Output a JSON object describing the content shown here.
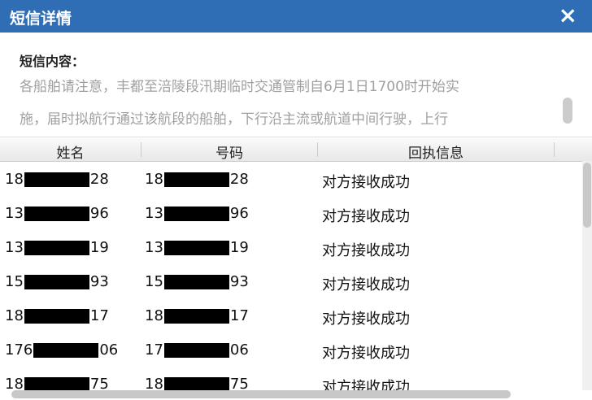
{
  "header": {
    "title": "短信详情",
    "close": "×"
  },
  "message": {
    "label": "短信内容：",
    "lines": [
      "各船舶请注意，丰都至涪陵段汛期临时交通管制自6月1日1700时开始实",
      "施，届时拟航行通过该航段的船舶，下行沿主流或航道中间行驶，上行"
    ]
  },
  "table": {
    "columns": [
      "姓名",
      "号码",
      "回执信息"
    ],
    "rows": [
      {
        "name_prefix": "18",
        "name_suffix": "28",
        "phone_prefix": "18",
        "phone_suffix": "28",
        "status": "对方接收成功"
      },
      {
        "name_prefix": "13",
        "name_suffix": "96",
        "phone_prefix": "13",
        "phone_suffix": "96",
        "status": "对方接收成功"
      },
      {
        "name_prefix": "13",
        "name_suffix": "19",
        "phone_prefix": "13",
        "phone_suffix": "19",
        "status": "对方接收成功"
      },
      {
        "name_prefix": "15",
        "name_suffix": "93",
        "phone_prefix": "15",
        "phone_suffix": "93",
        "status": "对方接收成功"
      },
      {
        "name_prefix": "18",
        "name_suffix": "17",
        "phone_prefix": "18",
        "phone_suffix": "17",
        "status": "对方接收成功"
      },
      {
        "name_prefix": "176",
        "name_suffix": "06",
        "phone_prefix": "17",
        "phone_suffix": "06",
        "status": "对方接收成功"
      },
      {
        "name_prefix": "18",
        "name_suffix": "75",
        "phone_prefix": "18",
        "phone_suffix": "75",
        "status": "对方接收成功"
      }
    ]
  }
}
